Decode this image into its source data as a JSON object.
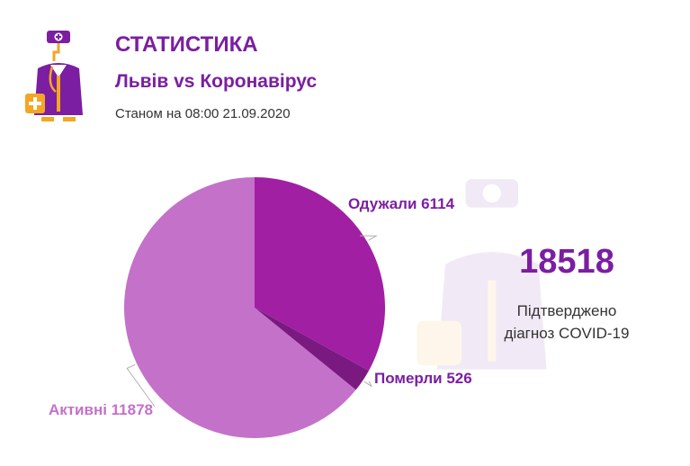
{
  "header": {
    "title": "СТАТИСТИКА",
    "subtitle": "Львів vs Коронавірус",
    "as_of": "Станом на 08:00 21.09.2020"
  },
  "summary": {
    "total": "18518",
    "caption_line1": "Підтверджено",
    "caption_line2": "діагноз COVID-19"
  },
  "colors": {
    "accent": "#7b1ea2",
    "gold": "#f5a623",
    "recovered": "#a11fa2",
    "deaths": "#7a1a80",
    "active": "#c471c9"
  },
  "chart_data": {
    "type": "pie",
    "title": "",
    "slices": [
      {
        "label": "Одужали",
        "value": 6114,
        "display": "Одужали 6114",
        "color": "#a11fa2"
      },
      {
        "label": "Померли",
        "value": 526,
        "display": "Померли 526",
        "color": "#7a1a80"
      },
      {
        "label": "Активні",
        "value": 11878,
        "display": "Активні 11878",
        "color": "#c471c9"
      }
    ]
  }
}
